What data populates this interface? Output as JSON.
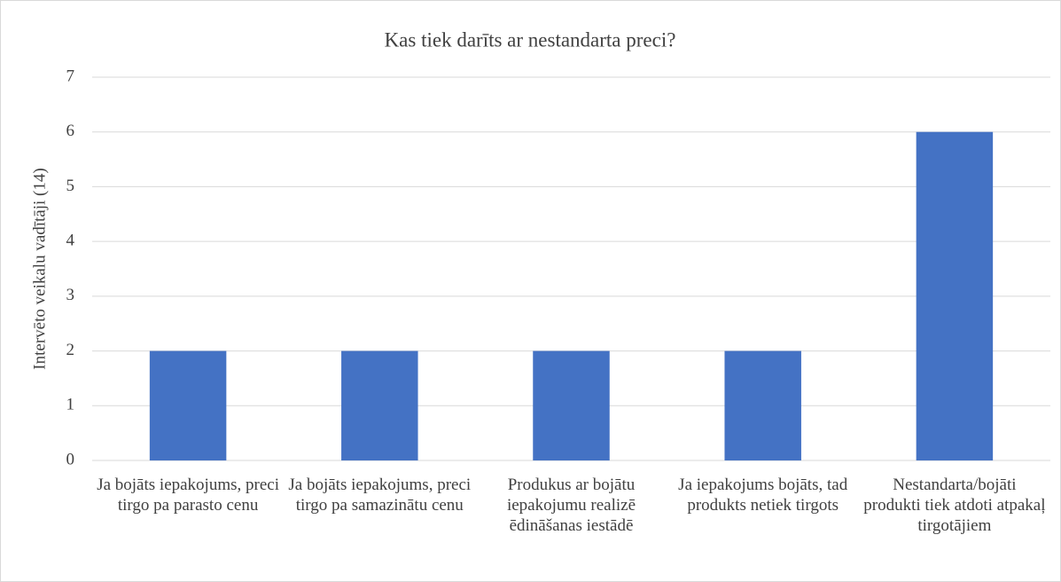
{
  "chart_data": {
    "type": "bar",
    "title": "Kas tiek darīts ar nestandarta preci?",
    "y_label": "Intervēto veikalu vadītāji (14)",
    "categories": [
      "Ja bojāts iepakojums, preci tirgo pa parasto cenu",
      "Ja bojāts iepakojums, preci tirgo pa samazinātu cenu",
      "Produkus ar bojātu iepakojumu realizē ēdināšanas iestādē",
      "Ja iepakojums bojāts, tad produkts netiek tirgots",
      "Nestandarta/bojāti produkti tiek atdoti atpakaļ tirgotājiem"
    ],
    "values": [
      2,
      2,
      2,
      2,
      6
    ],
    "color": "#4472c4",
    "ylim": [
      0,
      7
    ],
    "yticks": [
      0,
      1,
      2,
      3,
      4,
      5,
      6,
      7
    ],
    "grid": true
  }
}
